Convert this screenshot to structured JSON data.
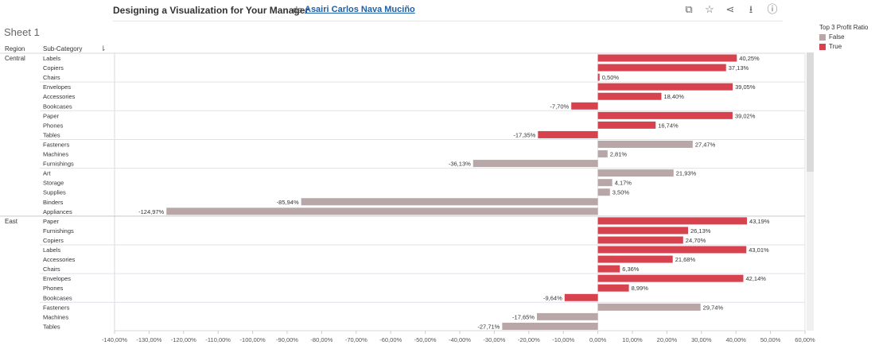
{
  "header": {
    "title": "Designing a Visualization for Your Manager",
    "by": "de",
    "author": "Asairi Carlos Nava Muciño"
  },
  "toolbar": [
    {
      "name": "copy-icon",
      "glyph": "⧉"
    },
    {
      "name": "star-icon",
      "glyph": "☆"
    },
    {
      "name": "share-icon",
      "glyph": "⋖"
    },
    {
      "name": "download-icon",
      "glyph": "⭳"
    },
    {
      "name": "info-icon",
      "glyph": "ⓘ"
    }
  ],
  "sheet_title": "Sheet 1",
  "columns": {
    "region": "Region",
    "subcategory": "Sub-Category"
  },
  "legend": {
    "title": "Top 3 Profit Ratio",
    "items": [
      {
        "label": "False",
        "color": "#b9a7a8"
      },
      {
        "label": "True",
        "color": "#d6424d"
      }
    ]
  },
  "chart_data": {
    "type": "bar",
    "orientation": "horizontal",
    "x_unit": "%",
    "xlim": [
      -140,
      60
    ],
    "x_ticks": [
      "-140,00%",
      "-130,00%",
      "-120,00%",
      "-110,00%",
      "-100,00%",
      "-90,00%",
      "-80,00%",
      "-70,00%",
      "-60,00%",
      "-50,00%",
      "-40,00%",
      "-30,00%",
      "-20,00%",
      "-10,00%",
      "0,00%",
      "10,00%",
      "20,00%",
      "30,00%",
      "40,00%",
      "50,00%",
      "60,00%"
    ],
    "regions": [
      {
        "name": "Central",
        "groups": [
          [
            {
              "label": "Labels",
              "value": 40.25,
              "text": "40,25%",
              "top3": true
            },
            {
              "label": "Copiers",
              "value": 37.13,
              "text": "37,13%",
              "top3": true
            },
            {
              "label": "Chairs",
              "value": 0.5,
              "text": "0,50%",
              "top3": true
            }
          ],
          [
            {
              "label": "Envelopes",
              "value": 39.05,
              "text": "39,05%",
              "top3": true
            },
            {
              "label": "Accessories",
              "value": 18.4,
              "text": "18,40%",
              "top3": true
            },
            {
              "label": "Bookcases",
              "value": -7.7,
              "text": "-7,70%",
              "top3": true
            }
          ],
          [
            {
              "label": "Paper",
              "value": 39.02,
              "text": "39,02%",
              "top3": true
            },
            {
              "label": "Phones",
              "value": 16.74,
              "text": "16,74%",
              "top3": true
            },
            {
              "label": "Tables",
              "value": -17.35,
              "text": "-17,35%",
              "top3": true
            }
          ],
          [
            {
              "label": "Fasteners",
              "value": 27.47,
              "text": "27,47%",
              "top3": false
            },
            {
              "label": "Machines",
              "value": 2.81,
              "text": "2,81%",
              "top3": false
            },
            {
              "label": "Furnishings",
              "value": -36.13,
              "text": "-36,13%",
              "top3": false
            }
          ],
          [
            {
              "label": "Art",
              "value": 21.93,
              "text": "21,93%",
              "top3": false
            },
            {
              "label": "Storage",
              "value": 4.17,
              "text": "4,17%",
              "top3": false
            },
            {
              "label": "Supplies",
              "value": 3.5,
              "text": "3,50%",
              "top3": false
            },
            {
              "label": "Binders",
              "value": -85.94,
              "text": "-85,94%",
              "top3": false
            },
            {
              "label": "Appliances",
              "value": -124.97,
              "text": "-124,97%",
              "top3": false
            }
          ]
        ]
      },
      {
        "name": "East",
        "groups": [
          [
            {
              "label": "Paper",
              "value": 43.19,
              "text": "43,19%",
              "top3": true
            },
            {
              "label": "Furnishings",
              "value": 26.13,
              "text": "26,13%",
              "top3": true
            },
            {
              "label": "Copiers",
              "value": 24.7,
              "text": "24,70%",
              "top3": true
            }
          ],
          [
            {
              "label": "Labels",
              "value": 43.01,
              "text": "43,01%",
              "top3": true
            },
            {
              "label": "Accessories",
              "value": 21.68,
              "text": "21,68%",
              "top3": true
            },
            {
              "label": "Chairs",
              "value": 6.36,
              "text": "6,36%",
              "top3": true
            }
          ],
          [
            {
              "label": "Envelopes",
              "value": 42.14,
              "text": "42,14%",
              "top3": true
            },
            {
              "label": "Phones",
              "value": 8.99,
              "text": "8,99%",
              "top3": true
            },
            {
              "label": "Bookcases",
              "value": -9.64,
              "text": "-9,64%",
              "top3": true
            }
          ],
          [
            {
              "label": "Fasteners",
              "value": 29.74,
              "text": "29,74%",
              "top3": false
            },
            {
              "label": "Machines",
              "value": -17.65,
              "text": "-17,65%",
              "top3": false
            },
            {
              "label": "Tables",
              "value": -27.71,
              "text": "-27,71%",
              "top3": false
            }
          ]
        ]
      }
    ]
  }
}
